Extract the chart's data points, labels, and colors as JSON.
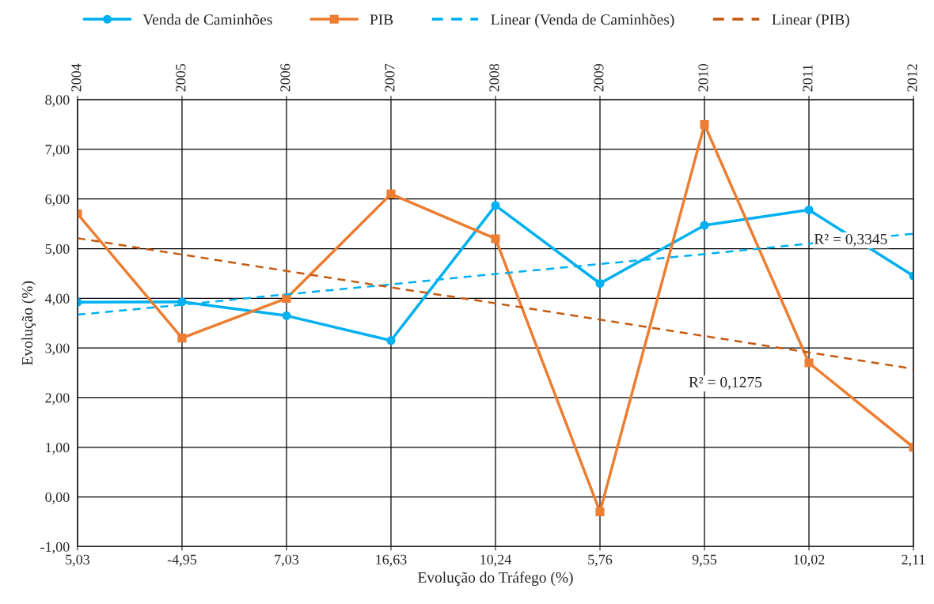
{
  "chart_data": {
    "type": "line",
    "xlabel": "Evolução do Tráfego (%)",
    "ylabel": "Evolução (%)",
    "categories": [
      "5,03",
      "-4,95",
      "7,03",
      "16,63",
      "10,24",
      "5,76",
      "9,55",
      "10,02",
      "2,11"
    ],
    "x2lim": [
      2004,
      2012
    ],
    "x2ticks": [
      2004,
      2005,
      2006,
      2007,
      2008,
      2009,
      2010,
      2011,
      2012
    ],
    "ylim": [
      -1,
      8
    ],
    "yticks": [
      {
        "value": -1,
        "label": "-1,00"
      },
      {
        "value": 0,
        "label": "0,00"
      },
      {
        "value": 1,
        "label": "1,00"
      },
      {
        "value": 2,
        "label": "2,00"
      },
      {
        "value": 3,
        "label": "3,00"
      },
      {
        "value": 4,
        "label": "4,00"
      },
      {
        "value": 5,
        "label": "5,00"
      },
      {
        "value": 6,
        "label": "6,00"
      },
      {
        "value": 7,
        "label": "7,00"
      },
      {
        "value": 8,
        "label": "8,00"
      }
    ],
    "grid": true,
    "legend": "top",
    "series": [
      {
        "name": "Venda de Caminhões",
        "color": "#00b0f0",
        "marker": "circle",
        "line_style": "solid",
        "values": [
          3.92,
          3.93,
          3.65,
          3.15,
          5.87,
          4.3,
          5.47,
          5.78,
          4.45
        ]
      },
      {
        "name": "PIB",
        "color": "#ed7d31",
        "marker": "square",
        "line_style": "solid",
        "values": [
          5.7,
          3.2,
          4.0,
          6.1,
          5.2,
          -0.3,
          7.5,
          2.7,
          1.0
        ]
      },
      {
        "name": "Linear (Venda de Caminhões)",
        "color": "#00b0f0",
        "marker": "none",
        "line_style": "dashed",
        "values": [
          3.67,
          3.87,
          4.08,
          4.28,
          4.49,
          4.69,
          4.89,
          5.1,
          5.3
        ]
      },
      {
        "name": "Linear (PIB)",
        "color": "#c55a11",
        "marker": "none",
        "line_style": "dashed",
        "values": [
          5.21,
          4.88,
          4.55,
          4.22,
          3.9,
          3.57,
          3.24,
          2.91,
          2.58
        ]
      }
    ],
    "annotations": [
      "R² = 0,3345",
      "R² = 0,1275"
    ]
  }
}
